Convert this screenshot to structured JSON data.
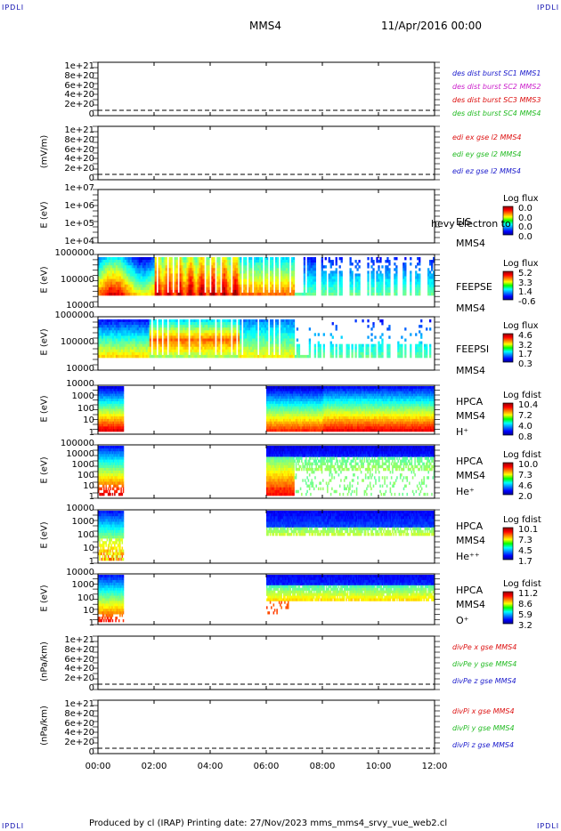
{
  "corner_label": "IPDLI",
  "header": {
    "spacecraft": "MMS4",
    "date": "11/Apr/2016 00:00"
  },
  "footer": {
    "text": "Produced by cl (IRAP)   Printing date: 27/Nov/2023   mms_mms4_srvy_vue_web2.cl"
  },
  "x_ticks": [
    "00:00",
    "02:00",
    "04:00",
    "06:00",
    "08:00",
    "10:00",
    "12:00"
  ],
  "panels": [
    {
      "id": "p1",
      "ylabel": "",
      "ticks": [
        "1e+21",
        "8e+20",
        "6e+20",
        "4e+20",
        "2e+20",
        "0"
      ],
      "legend": [
        {
          "text": "des dist burst SC1 MMS1",
          "color": "#1a1acc"
        },
        {
          "text": "des dist burst SC2 MMS2",
          "color": "#cc22cc"
        },
        {
          "text": "des dist burst SC3 MMS3",
          "color": "#dd1111"
        },
        {
          "text": "des dist burst SC4 MMS4",
          "color": "#22bb22"
        }
      ]
    },
    {
      "id": "p2",
      "ylabel": "(mV/m)",
      "ticks": [
        "1e+21",
        "8e+20",
        "6e+20",
        "4e+20",
        "2e+20",
        "0"
      ],
      "legend": [
        {
          "text": "edi ex gse l2 MMS4",
          "color": "#dd1111"
        },
        {
          "text": "edi ey gse l2 MMS4",
          "color": "#22bb22"
        },
        {
          "text": "edi ez gse l2 MMS4",
          "color": "#1a1acc"
        }
      ]
    },
    {
      "id": "p3",
      "ylabel": "E (eV)",
      "ticks": [
        "1e+07",
        "1e+06",
        "1e+05",
        "1e+04"
      ],
      "side": [
        "EIS",
        "MMS4"
      ],
      "overlay": "hevy electron to",
      "cb": {
        "title": "Log flux",
        "labels": [
          "0.0",
          "0.0",
          "0.0",
          "0.0"
        ]
      }
    },
    {
      "id": "p4",
      "ylabel": "E (eV)",
      "ticks": [
        "1000000",
        "100000",
        "10000"
      ],
      "side": [
        "FEEPSE",
        "MMS4"
      ],
      "cb": {
        "title": "Log flux",
        "labels": [
          "5.2",
          "3.3",
          "1.4",
          "-0.6"
        ]
      }
    },
    {
      "id": "p5",
      "ylabel": "E (eV)",
      "ticks": [
        "1000000",
        "100000",
        "10000"
      ],
      "side": [
        "FEEPSI",
        "MMS4"
      ],
      "cb": {
        "title": "Log flux",
        "labels": [
          "4.6",
          "3.2",
          "1.7",
          "0.3"
        ]
      }
    },
    {
      "id": "p6",
      "ylabel": "E (eV)",
      "ticks": [
        "10000",
        "1000",
        "100",
        "10",
        "1"
      ],
      "side": [
        "HPCA",
        "MMS4",
        "H⁺"
      ],
      "cb": {
        "title": "Log fdist",
        "labels": [
          "10.4",
          "7.2",
          "4.0",
          "0.8"
        ]
      }
    },
    {
      "id": "p7",
      "ylabel": "E (eV)",
      "ticks": [
        "100000",
        "10000",
        "1000",
        "100",
        "10",
        "1"
      ],
      "side": [
        "HPCA",
        "MMS4",
        "He⁺"
      ],
      "cb": {
        "title": "Log fdist",
        "labels": [
          "10.0",
          "7.3",
          "4.6",
          "2.0"
        ]
      }
    },
    {
      "id": "p8",
      "ylabel": "E (eV)",
      "ticks": [
        "10000",
        "1000",
        "100",
        "10",
        "1"
      ],
      "side": [
        "HPCA",
        "MMS4",
        "He⁺⁺"
      ],
      "cb": {
        "title": "Log fdist",
        "labels": [
          "10.1",
          "7.3",
          "4.5",
          "1.7"
        ]
      }
    },
    {
      "id": "p9",
      "ylabel": "E (eV)",
      "ticks": [
        "10000",
        "1000",
        "100",
        "10",
        "1"
      ],
      "side": [
        "HPCA",
        "MMS4",
        "O⁺"
      ],
      "cb": {
        "title": "Log fdist",
        "labels": [
          "11.2",
          "8.6",
          "5.9",
          "3.2"
        ]
      }
    },
    {
      "id": "p10",
      "ylabel": "(nPa/km)",
      "ticks": [
        "1e+21",
        "8e+20",
        "6e+20",
        "4e+20",
        "2e+20",
        "0"
      ],
      "legend": [
        {
          "text": "divPe x gse MMS4",
          "color": "#dd1111"
        },
        {
          "text": "divPe y gse MMS4",
          "color": "#22bb22"
        },
        {
          "text": "divPe z gse MMS4",
          "color": "#1a1acc"
        }
      ]
    },
    {
      "id": "p11",
      "ylabel": "(nPa/km)",
      "ticks": [
        "1e+21",
        "8e+20",
        "6e+20",
        "4e+20",
        "2e+20",
        "0"
      ],
      "legend": [
        {
          "text": "divPi x gse MMS4",
          "color": "#dd1111"
        },
        {
          "text": "divPi y gse MMS4",
          "color": "#22bb22"
        },
        {
          "text": "divPi z gse MMS4",
          "color": "#1a1acc"
        }
      ]
    }
  ],
  "chart_data": {
    "type": "heatmap",
    "title": "MMS4",
    "date": "11/Apr/2016 00:00",
    "x_range": [
      "00:00",
      "12:00"
    ],
    "hpca_data_intervals": [
      [
        "00:00",
        "00:55"
      ],
      [
        "06:00",
        "12:00"
      ]
    ],
    "feeps_data_interval": [
      "00:00",
      "12:00"
    ]
  }
}
